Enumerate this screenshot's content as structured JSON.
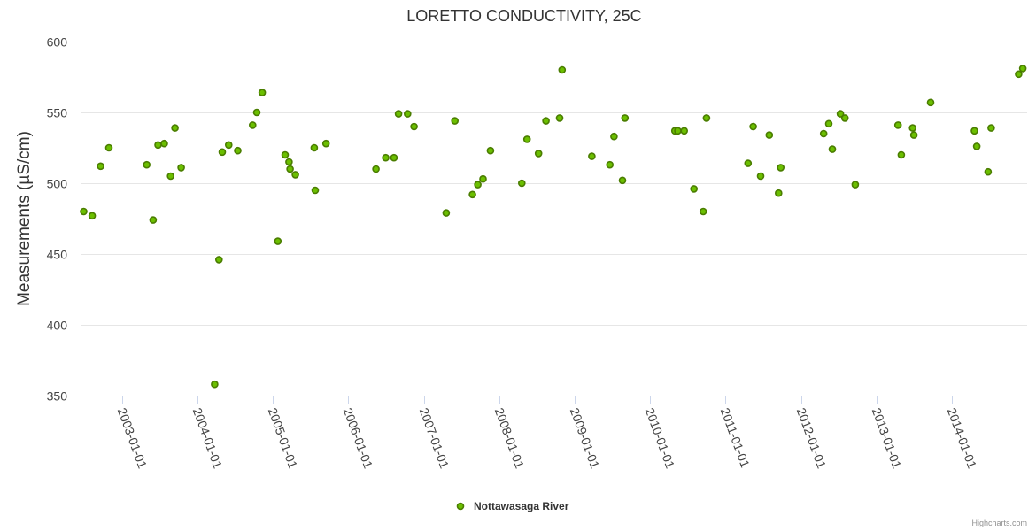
{
  "credits": "Highcharts.com",
  "colors": {
    "point_fill": "#6bbf00",
    "point_stroke": "#4a7d00"
  },
  "chart_data": {
    "type": "scatter",
    "title": "LORETTO CONDUCTIVITY, 25C",
    "xlabel": "",
    "ylabel": "Measurements (µS/cm)",
    "ylim": [
      350,
      600
    ],
    "yticks": [
      350,
      400,
      450,
      500,
      550,
      600
    ],
    "xlim": [
      "2002-06-15",
      "2014-12-31"
    ],
    "xticks": [
      "2003-01-01",
      "2004-01-01",
      "2005-01-01",
      "2006-01-01",
      "2007-01-01",
      "2008-01-01",
      "2009-01-01",
      "2010-01-01",
      "2011-01-01",
      "2012-01-01",
      "2013-01-01",
      "2014-01-01"
    ],
    "legend": {
      "position": "bottom-center"
    },
    "series": [
      {
        "name": "Nottawasaga River",
        "points": [
          [
            "2002-06-30",
            480
          ],
          [
            "2002-08-10",
            477
          ],
          [
            "2002-09-20",
            512
          ],
          [
            "2002-10-30",
            525
          ],
          [
            "2003-05-01",
            513
          ],
          [
            "2003-06-01",
            474
          ],
          [
            "2003-06-25",
            527
          ],
          [
            "2003-07-25",
            528
          ],
          [
            "2003-08-25",
            505
          ],
          [
            "2003-09-15",
            539
          ],
          [
            "2003-10-15",
            511
          ],
          [
            "2004-03-25",
            358
          ],
          [
            "2004-04-15",
            446
          ],
          [
            "2004-05-01",
            522
          ],
          [
            "2004-06-01",
            527
          ],
          [
            "2004-07-15",
            523
          ],
          [
            "2004-09-25",
            541
          ],
          [
            "2004-10-15",
            550
          ],
          [
            "2004-11-10",
            564
          ],
          [
            "2005-01-25",
            459
          ],
          [
            "2005-03-01",
            520
          ],
          [
            "2005-03-20",
            515
          ],
          [
            "2005-03-25",
            510
          ],
          [
            "2005-04-20",
            506
          ],
          [
            "2005-07-20",
            525
          ],
          [
            "2005-07-25",
            495
          ],
          [
            "2005-09-15",
            528
          ],
          [
            "2006-05-15",
            510
          ],
          [
            "2006-07-01",
            518
          ],
          [
            "2006-08-10",
            518
          ],
          [
            "2006-09-01",
            549
          ],
          [
            "2006-10-15",
            549
          ],
          [
            "2006-11-15",
            540
          ],
          [
            "2007-04-20",
            479
          ],
          [
            "2007-06-01",
            544
          ],
          [
            "2007-08-25",
            492
          ],
          [
            "2007-09-20",
            499
          ],
          [
            "2007-10-15",
            503
          ],
          [
            "2007-11-20",
            523
          ],
          [
            "2008-04-20",
            500
          ],
          [
            "2008-05-15",
            531
          ],
          [
            "2008-07-10",
            521
          ],
          [
            "2008-08-15",
            544
          ],
          [
            "2008-10-20",
            546
          ],
          [
            "2008-11-01",
            580
          ],
          [
            "2009-03-25",
            519
          ],
          [
            "2009-06-20",
            513
          ],
          [
            "2009-07-10",
            533
          ],
          [
            "2009-08-20",
            502
          ],
          [
            "2009-09-01",
            546
          ],
          [
            "2010-05-01",
            537
          ],
          [
            "2010-05-15",
            537
          ],
          [
            "2010-06-15",
            537
          ],
          [
            "2010-08-01",
            496
          ],
          [
            "2010-09-15",
            480
          ],
          [
            "2010-10-01",
            546
          ],
          [
            "2011-04-20",
            514
          ],
          [
            "2011-05-15",
            540
          ],
          [
            "2011-06-20",
            505
          ],
          [
            "2011-08-01",
            534
          ],
          [
            "2011-09-15",
            493
          ],
          [
            "2011-09-25",
            511
          ],
          [
            "2012-04-20",
            535
          ],
          [
            "2012-05-15",
            542
          ],
          [
            "2012-06-01",
            524
          ],
          [
            "2012-07-10",
            549
          ],
          [
            "2012-08-01",
            546
          ],
          [
            "2012-09-20",
            499
          ],
          [
            "2013-04-15",
            541
          ],
          [
            "2013-05-01",
            520
          ],
          [
            "2013-06-25",
            539
          ],
          [
            "2013-07-01",
            534
          ],
          [
            "2013-09-20",
            557
          ],
          [
            "2014-04-20",
            537
          ],
          [
            "2014-05-01",
            526
          ],
          [
            "2014-06-25",
            508
          ],
          [
            "2014-07-10",
            539
          ],
          [
            "2014-11-20",
            577
          ],
          [
            "2014-12-10",
            581
          ]
        ]
      }
    ]
  }
}
